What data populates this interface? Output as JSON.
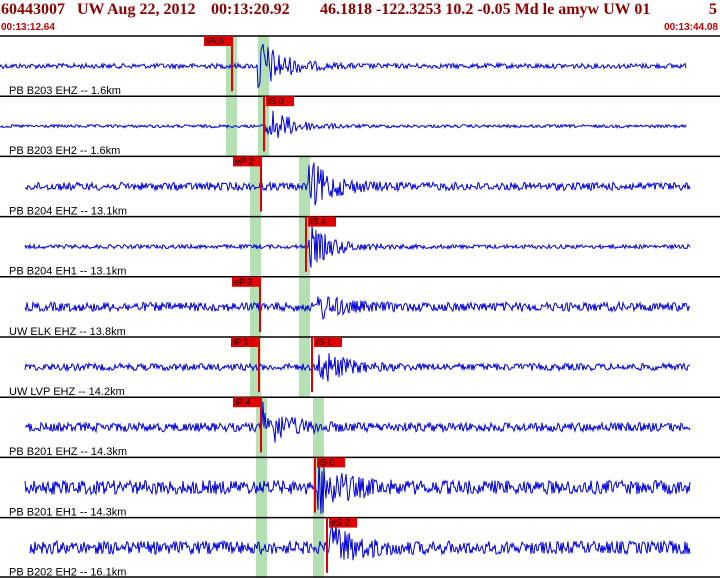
{
  "header": {
    "event_id": "60443007",
    "network": "UW",
    "date": "Aug 22, 2012",
    "time": "00:13:20.92",
    "lat_lon_depth_mag": "46.1818 -122.3253 10.2 -0.05 Md le amyw UW 01",
    "trail": "5",
    "start_time": "00:13:12.64",
    "end_time": "00:13:44.08"
  },
  "traces": [
    {
      "label": "PB B203 EHZ -- 1.6km",
      "amp": 5,
      "start": 0,
      "end": 686,
      "picks": [
        {
          "label": "iPc0",
          "x": 232,
          "s": false
        }
      ],
      "bands": [
        {
          "x": 231
        },
        {
          "x": 263
        }
      ],
      "bursts": [
        {
          "x": 258,
          "a": 30
        }
      ]
    },
    {
      "label": "PB B203 EH2 -- 1.6km",
      "amp": 3,
      "start": 0,
      "end": 686,
      "picks": [
        {
          "label": "iS 0",
          "x": 264,
          "s": true
        }
      ],
      "bands": [
        {
          "x": 231
        },
        {
          "x": 263
        }
      ],
      "bursts": [
        {
          "x": 266,
          "a": 22
        }
      ]
    },
    {
      "label": "PB B204 EHZ -- 13.1km",
      "amp": 8,
      "start": 25,
      "end": 690,
      "picks": [
        {
          "label": "eP 2",
          "x": 261,
          "s": false
        }
      ],
      "bands": [
        {
          "x": 255
        },
        {
          "x": 304
        }
      ],
      "bursts": [
        {
          "x": 309,
          "a": 25
        }
      ]
    },
    {
      "label": "PB B204 EH1 -- 13.1km",
      "amp": 4,
      "start": 25,
      "end": 690,
      "picks": [
        {
          "label": "iS 4",
          "x": 306,
          "s": true
        }
      ],
      "bands": [
        {
          "x": 255
        },
        {
          "x": 304
        }
      ],
      "bursts": [
        {
          "x": 309,
          "a": 22
        }
      ]
    },
    {
      "label": "UW ELK EHZ -- 13.8km",
      "amp": 9,
      "start": 25,
      "end": 690,
      "picks": [
        {
          "label": "eP 2",
          "x": 260,
          "s": false
        }
      ],
      "bands": [
        {
          "x": 255
        },
        {
          "x": 304
        }
      ],
      "bursts": [
        {
          "x": 318,
          "a": 12
        }
      ]
    },
    {
      "label": "UW LVP EHZ -- 14.2km",
      "amp": 7,
      "start": 25,
      "end": 690,
      "picks": [
        {
          "label": "iP 1",
          "x": 259,
          "s": false
        },
        {
          "label": "iS 1",
          "x": 312,
          "s": true
        }
      ],
      "bands": [
        {
          "x": 255
        },
        {
          "x": 304
        }
      ],
      "bursts": [
        {
          "x": 318,
          "a": 20
        }
      ]
    },
    {
      "label": "PB B201 EHZ -- 14.3km",
      "amp": 9,
      "start": 25,
      "end": 690,
      "picks": [
        {
          "label": "iP 4",
          "x": 261,
          "s": false
        }
      ],
      "bands": [
        {
          "x": 261
        },
        {
          "x": 318
        }
      ],
      "bursts": [
        {
          "x": 263,
          "a": 22
        }
      ]
    },
    {
      "label": "PB B201 EH1 -- 14.3km",
      "amp": 14,
      "start": 25,
      "end": 690,
      "picks": [
        {
          "label": "iS 0",
          "x": 315,
          "s": true
        }
      ],
      "bands": [
        {
          "x": 261
        },
        {
          "x": 318
        }
      ],
      "bursts": [
        {
          "x": 318,
          "a": 26
        }
      ]
    },
    {
      "label": "PB B202 EH2 -- 16.1km",
      "amp": 13,
      "start": 30,
      "end": 690,
      "picks": [
        {
          "label": "eS 2",
          "x": 327,
          "s": true
        }
      ],
      "bands": [
        {
          "x": 261
        },
        {
          "x": 318
        }
      ],
      "bursts": [
        {
          "x": 330,
          "a": 24
        }
      ]
    }
  ],
  "colors": {
    "trace": "#0000dd",
    "pick": "#e00000",
    "band": "#b4e0b4",
    "divider": "#000000"
  }
}
